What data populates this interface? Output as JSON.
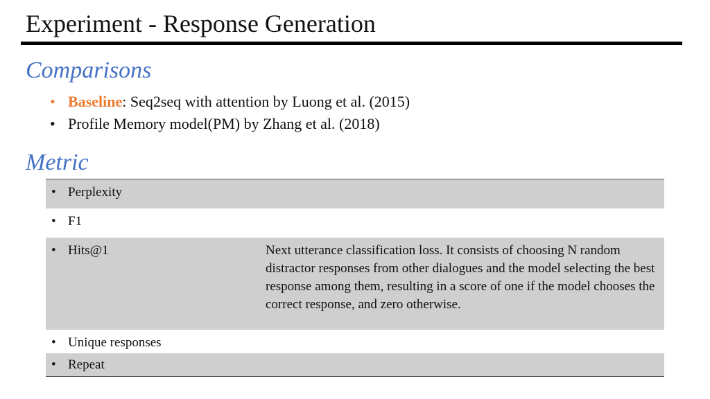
{
  "slide": {
    "title": "Experiment - Response Generation"
  },
  "comparisons": {
    "heading": "Comparisons",
    "items": [
      {
        "bullet": "•",
        "highlight": "Baseline",
        "text": ": Seq2seq with attention by Luong et al. (2015)"
      },
      {
        "bullet": "•",
        "highlight": "",
        "text": "Profile Memory model(PM) by Zhang et al. (2018)"
      }
    ]
  },
  "metric": {
    "heading": "Metric",
    "rows": [
      {
        "bullet": "•",
        "name": "Perplexity",
        "description": ""
      },
      {
        "bullet": "•",
        "name": "F1",
        "description": ""
      },
      {
        "bullet": "•",
        "name": "Hits@1",
        "description": "Next utterance classification loss. It consists of choosing N random distractor responses from other dialogues and the model selecting the best response among them, resulting in a score of one if the model chooses the correct response, and zero otherwise."
      },
      {
        "bullet": "•",
        "name": "Unique responses",
        "description": ""
      },
      {
        "bullet": "•",
        "name": "Repeat",
        "description": ""
      }
    ]
  },
  "colors": {
    "heading_accent": "#4472c4",
    "highlight_accent": "#ed7d31",
    "row_shade": "#cfcfcf"
  }
}
